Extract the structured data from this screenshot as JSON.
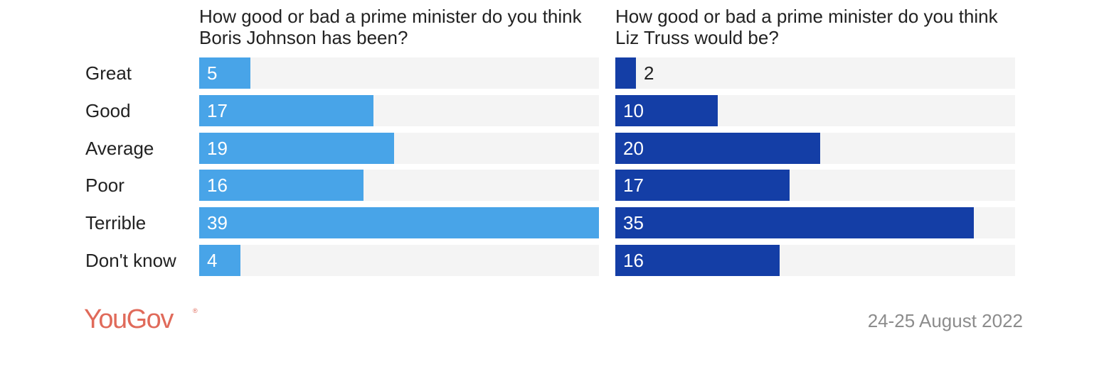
{
  "chart_data": {
    "type": "bar",
    "orientation": "horizontal",
    "categories": [
      "Great",
      "Good",
      "Average",
      "Poor",
      "Terrible",
      "Don't know"
    ],
    "series": [
      {
        "title": "How good or bad a prime minister do you think Boris Johnson has been?",
        "values": [
          5,
          17,
          19,
          16,
          39,
          4
        ],
        "color": "#48a4e8"
      },
      {
        "title": "How good or bad a prime minister do you think Liz Truss would be?",
        "values": [
          2,
          10,
          20,
          17,
          35,
          16
        ],
        "color": "#143ea6"
      }
    ],
    "xlim": [
      0,
      39
    ],
    "grid": false,
    "legend": "none"
  },
  "colors": {
    "track": "#f4f4f4",
    "label_on_bar": "#ffffff",
    "label_outside_bar": "#222222",
    "brand": "#e06a5a",
    "date": "#8c8c8c"
  },
  "footer": {
    "logo": "YouGov",
    "logo_mark": "®",
    "date": "24-25 August 2022"
  }
}
